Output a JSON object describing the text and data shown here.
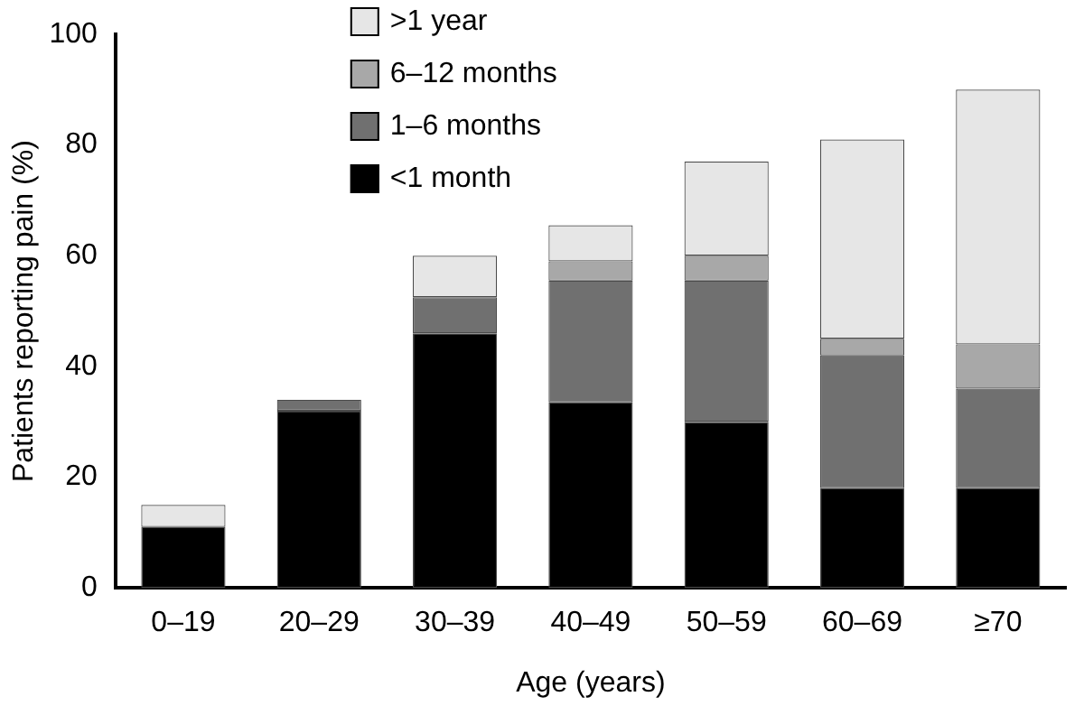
{
  "chart_data": {
    "type": "bar",
    "stacked": true,
    "xlabel": "Age (years)",
    "ylabel": "Patients reporting pain (%)",
    "categories": [
      "0–19",
      "20–29",
      "30–39",
      "40–49",
      "50–59",
      "60–69",
      "≥70"
    ],
    "series": [
      {
        "name": "<1 month",
        "color": "#000000",
        "values": [
          11,
          32,
          46,
          33.5,
          30,
          18,
          18
        ]
      },
      {
        "name": "1–6 months",
        "color": "#707070",
        "values": [
          0,
          2,
          6.5,
          22,
          25.5,
          24,
          18
        ]
      },
      {
        "name": "6–12 months",
        "color": "#a8a8a8",
        "values": [
          0,
          0,
          0,
          3.5,
          4.5,
          3,
          8
        ]
      },
      {
        "name": ">1 year",
        "color": "#e6e6e6",
        "values": [
          4,
          0,
          7.5,
          6.5,
          17,
          36,
          46
        ]
      }
    ],
    "ylim": [
      0,
      100
    ],
    "yticks": [
      0,
      20,
      40,
      60,
      80,
      100
    ],
    "grid": false,
    "legend": "top left"
  }
}
